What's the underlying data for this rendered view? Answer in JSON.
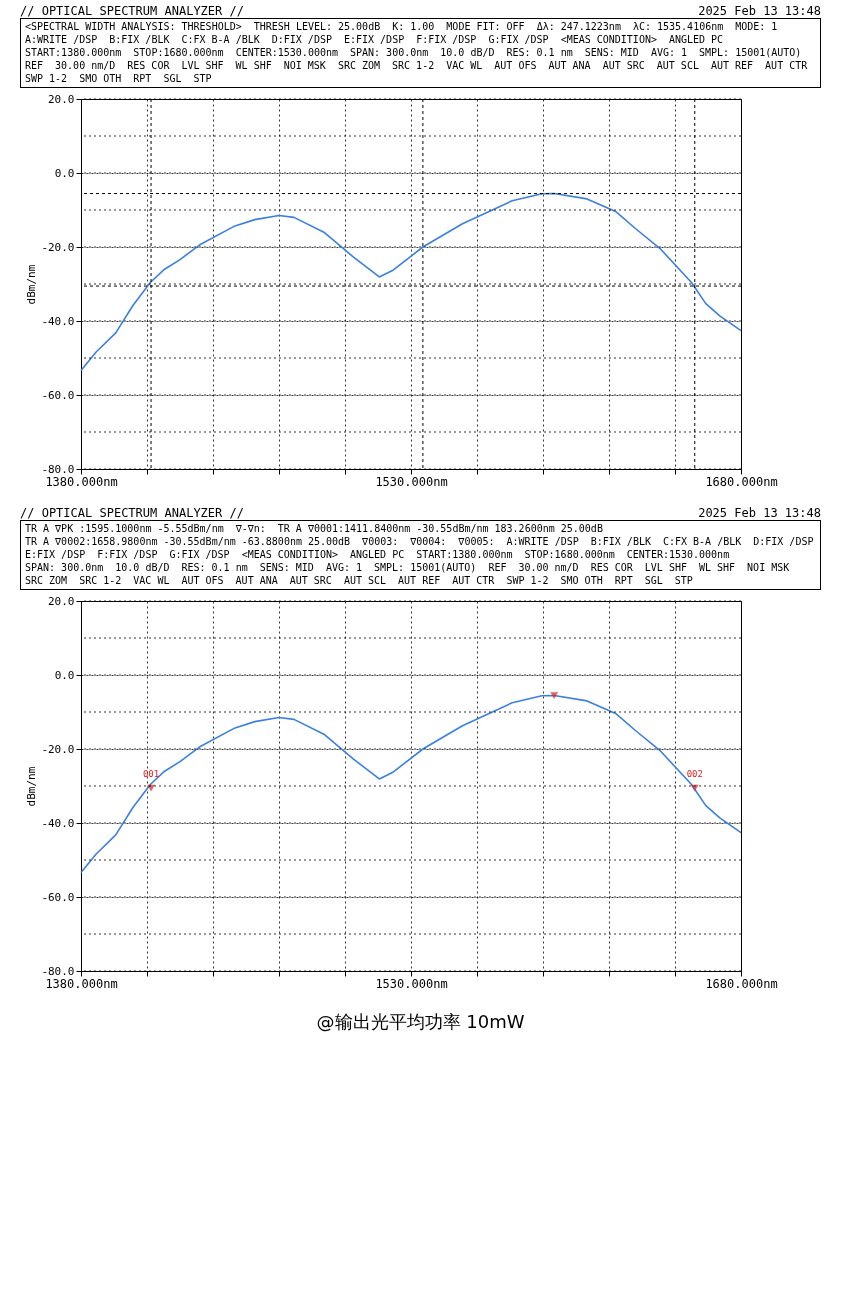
{
  "chart_data": [
    {
      "type": "line",
      "title": "// OPTICAL SPECTRUM ANALYZER //",
      "subtitle": "2025 Feb 13 13:48",
      "ylabel": "dBm/nm",
      "annotations": [
        "<SPECTRAL WIDTH ANALYSIS: THRESHOLD>",
        "THRESH LEVEL: 25.00dB",
        "K: 1.00",
        "MODE FIT: OFF",
        "Δλ: 247.1223nm",
        "λC: 1535.4106nm",
        "MODE: 1",
        "A:WRITE /DSP",
        "B:FIX /BLK",
        "C:FX B-A /BLK",
        "D:FIX /DSP",
        "E:FIX /DSP",
        "F:FIX /DSP",
        "G:FIX /DSP",
        "<MEAS CONDITION>",
        "ANGLED PC",
        "START:1380.000nm",
        "STOP:1680.000nm",
        "CENTER:1530.000nm",
        "SPAN: 300.0nm",
        "10.0 dB/D",
        "RES: 0.1 nm",
        "SENS: MID",
        "AVG: 1",
        "SMPL: 15001(AUTO)",
        "REF",
        "30.00 nm/D",
        "RES COR",
        "LVL SHF",
        "WL SHF",
        "NOI MSK",
        "SRC ZOM",
        "SRC 1-2",
        "VAC WL",
        "AUT OFS",
        "AUT ANA",
        "AUT SRC",
        "AUT SCL",
        "AUT REF",
        "AUT CTR",
        "SWP 1-2",
        "SMO OTH",
        "RPT",
        "SGL",
        "STP"
      ],
      "x": [
        1380,
        1387,
        1395.8,
        1403.6,
        1411.5,
        1418,
        1425,
        1434,
        1450,
        1459,
        1470,
        1476.8,
        1490.4,
        1504,
        1515.6,
        1522,
        1535.4,
        1553.4,
        1576,
        1589.5,
        1595.1,
        1610,
        1623,
        1632,
        1643.5,
        1657.5,
        1664,
        1670.5,
        1680
      ],
      "series": [
        {
          "color": "#3a80e0",
          "values": [
            -53.4,
            -48.3,
            -43.2,
            -35.8,
            -29.6,
            -26,
            -23.4,
            -19.4,
            -14.3,
            -12.6,
            -11.5,
            -12,
            -16,
            -22.8,
            -28.1,
            -26.2,
            -20,
            -13.7,
            -7.5,
            -5.6,
            -5.55,
            -7,
            -10.4,
            -15,
            -20.6,
            -29.6,
            -35.3,
            -38.7,
            -42.6
          ]
        }
      ],
      "xlim": [
        1380,
        1680
      ],
      "xticks": [
        {
          "value": 1380,
          "label": "1380.000nm"
        },
        {
          "value": 1410,
          "label": null
        },
        {
          "value": 1440,
          "label": null
        },
        {
          "value": 1470,
          "label": null
        },
        {
          "value": 1500,
          "label": null
        },
        {
          "value": 1530,
          "label": "1530.000nm"
        },
        {
          "value": 1560,
          "label": null
        },
        {
          "value": 1590,
          "label": null
        },
        {
          "value": 1620,
          "label": null
        },
        {
          "value": 1650,
          "label": null
        },
        {
          "value": 1680,
          "label": "1680.000nm"
        }
      ],
      "ylim": [
        -80,
        20
      ],
      "yticks": [
        {
          "value": 20,
          "label": "20.0"
        },
        {
          "value": 10,
          "label": null
        },
        {
          "value": 0,
          "label": "0.0"
        },
        {
          "value": -10,
          "label": null
        },
        {
          "value": -20,
          "label": "-20.0"
        },
        {
          "value": -30,
          "label": null
        },
        {
          "value": -40,
          "label": "-40.0"
        },
        {
          "value": -50,
          "label": null
        },
        {
          "value": -60,
          "label": "-60.0"
        },
        {
          "value": -70,
          "label": null
        },
        {
          "value": -80,
          "label": "-80.0"
        }
      ],
      "ref_lines": [
        {
          "axis": "x",
          "value": 1411.84,
          "color": "#000000",
          "line_style": "dashed"
        },
        {
          "axis": "x",
          "value": 1535.41,
          "color": "#000000",
          "line_style": "dashed"
        },
        {
          "axis": "x",
          "value": 1658.98,
          "color": "#000000",
          "line_style": "dashed"
        },
        {
          "axis": "y",
          "value": -5.55,
          "color": "#000000",
          "line_style": "dashed"
        },
        {
          "axis": "y",
          "value": -30.55,
          "color": "#000000",
          "line_style": "dashed"
        }
      ],
      "grid": true
    },
    {
      "type": "line",
      "title": "// OPTICAL SPECTRUM ANALYZER //",
      "subtitle": "2025 Feb 13 13:48",
      "ylabel": "dBm/nm",
      "annotations": [
        "TR A ∇PK :1595.1000nm -5.55dBm/nm",
        "∇-∇n:",
        "TR A ∇0001:1411.8400nm -30.55dBm/nm 183.2600nm 25.00dB",
        "TR A ∇0002:1658.9800nm -30.55dBm/nm -63.8800nm 25.00dB",
        "∇0003:",
        "∇0004:",
        "∇0005:",
        "A:WRITE /DSP",
        "B:FIX /BLK",
        "C:FX B-A /BLK",
        "D:FIX /DSP",
        "E:FIX /DSP",
        "F:FIX /DSP",
        "G:FIX /DSP",
        "<MEAS CONDITION>",
        "ANGLED PC",
        "START:1380.000nm",
        "STOP:1680.000nm",
        "CENTER:1530.000nm",
        "SPAN: 300.0nm",
        "10.0 dB/D",
        "RES: 0.1 nm",
        "SENS: MID",
        "AVG: 1",
        "SMPL: 15001(AUTO)",
        "REF",
        "30.00 nm/D",
        "RES COR",
        "LVL SHF",
        "WL SHF",
        "NOI MSK",
        "SRC ZOM",
        "SRC 1-2",
        "VAC WL",
        "AUT OFS",
        "AUT ANA",
        "AUT SRC",
        "AUT SCL",
        "AUT REF",
        "AUT CTR",
        "SWP 1-2",
        "SMO OTH",
        "RPT",
        "SGL",
        "STP",
        {
          "text": "001",
          "x": 1411.84,
          "y": -30.55
        },
        {
          "text": "002",
          "x": 1658.98,
          "y": -30.55
        },
        "@输出光平均功率 10mW"
      ],
      "x": [
        1380,
        1387,
        1395.8,
        1403.6,
        1411.5,
        1418,
        1425,
        1434,
        1450,
        1459,
        1470,
        1476.8,
        1490.4,
        1504,
        1515.6,
        1522,
        1535.4,
        1553.4,
        1576,
        1589.5,
        1595.1,
        1610,
        1623,
        1632,
        1643.5,
        1657.5,
        1664,
        1670.5,
        1680
      ],
      "series": [
        {
          "color": "#3a80e0",
          "values": [
            -53.4,
            -48.3,
            -43.2,
            -35.8,
            -29.6,
            -26,
            -23.4,
            -19.4,
            -14.3,
            -12.6,
            -11.5,
            -12,
            -16,
            -22.8,
            -28.1,
            -26.2,
            -20,
            -13.7,
            -7.5,
            -5.6,
            -5.55,
            -7,
            -10.4,
            -15,
            -20.6,
            -29.6,
            -35.3,
            -38.7,
            -42.6
          ]
        },
        {
          "type": "scatter",
          "color": "#e02020",
          "marker": "triangle",
          "x": [
            1595.1,
            1411.84,
            1658.98
          ],
          "values": [
            -5.55,
            -30.55,
            -30.55
          ]
        }
      ],
      "xlim": [
        1380,
        1680
      ],
      "xticks": [
        {
          "value": 1380,
          "label": "1380.000nm"
        },
        {
          "value": 1410,
          "label": null
        },
        {
          "value": 1440,
          "label": null
        },
        {
          "value": 1470,
          "label": null
        },
        {
          "value": 1500,
          "label": null
        },
        {
          "value": 1530,
          "label": "1530.000nm"
        },
        {
          "value": 1560,
          "label": null
        },
        {
          "value": 1590,
          "label": null
        },
        {
          "value": 1620,
          "label": null
        },
        {
          "value": 1650,
          "label": null
        },
        {
          "value": 1680,
          "label": "1680.000nm"
        }
      ],
      "ylim": [
        -80,
        20
      ],
      "yticks": [
        {
          "value": 20,
          "label": "20.0"
        },
        {
          "value": 10,
          "label": null
        },
        {
          "value": 0,
          "label": "0.0"
        },
        {
          "value": -10,
          "label": null
        },
        {
          "value": -20,
          "label": "-20.0"
        },
        {
          "value": -30,
          "label": null
        },
        {
          "value": -40,
          "label": "-40.0"
        },
        {
          "value": -50,
          "label": null
        },
        {
          "value": -60,
          "label": "-60.0"
        },
        {
          "value": -70,
          "label": null
        },
        {
          "value": -80,
          "label": "-80.0"
        }
      ],
      "grid": true
    }
  ]
}
